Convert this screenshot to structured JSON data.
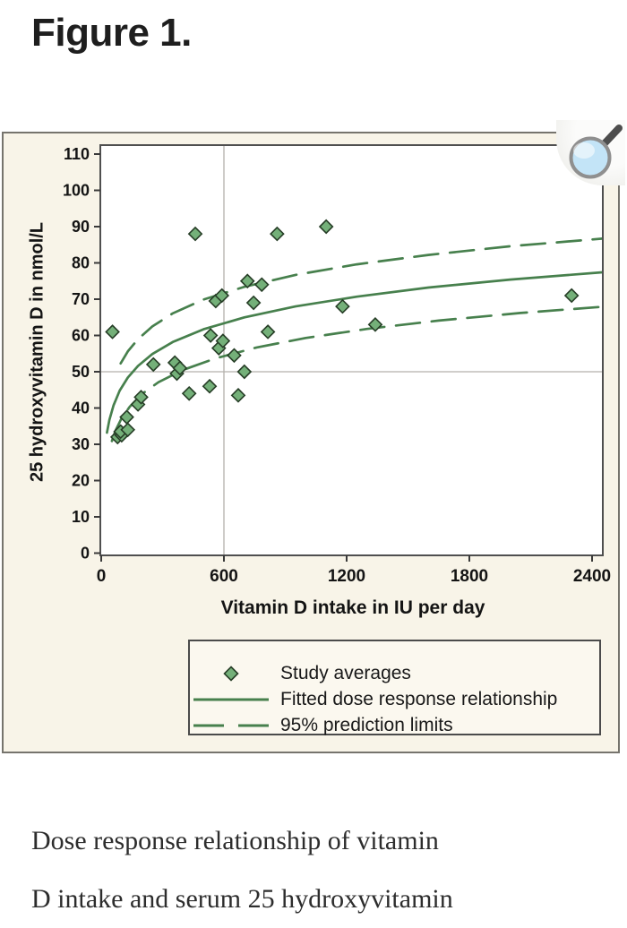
{
  "page": {
    "title": "Figure 1.",
    "caption_lines": [
      "Dose response relationship of vitamin",
      "D intake and serum 25 hydroxyvitamin"
    ]
  },
  "colors": {
    "panel_bg": "#f8f4e8",
    "panel_border": "#76746d",
    "plot_bg": "#ffffff",
    "frame": "#4f4f4f",
    "reference_line": "#b3b1ac",
    "tick": "#3a3a3a",
    "tick_text": "#141414",
    "curve_green": "#47804d",
    "marker_fill": "#74b079",
    "marker_stroke": "#263d26",
    "legend_border": "#4b4b4b",
    "legend_bg": "#fbf8ef",
    "lens_fill": "#c3e4f7",
    "lens_rim": "#8f8f8f",
    "lens_handle": "#4d4d4d"
  },
  "chart_data": {
    "type": "scatter",
    "title": "",
    "xlabel": "Vitamin D intake in IU per day",
    "ylabel": "25 hydroxyvitamin D in nmol/L",
    "xlim": [
      0,
      2453
    ],
    "ylim": [
      0,
      112.5
    ],
    "x_ticks": [
      0,
      600,
      1200,
      1800,
      2400
    ],
    "y_ticks": [
      0,
      10,
      20,
      30,
      40,
      50,
      60,
      70,
      80,
      90,
      100,
      110
    ],
    "reference_line_x": 600,
    "reference_line_y": 50,
    "grid": "off",
    "legend": {
      "position": "bottom",
      "entries": [
        {
          "marker": "diamond",
          "label": "Study averages"
        },
        {
          "marker": "solid-line",
          "label": "Fitted dose response relationship"
        },
        {
          "marker": "dashed-line",
          "label": "95% prediction limits"
        }
      ]
    },
    "series": [
      {
        "name": "Study averages",
        "type": "scatter",
        "marker": "diamond",
        "points": [
          [
            55,
            61
          ],
          [
            80,
            32
          ],
          [
            100,
            32.5
          ],
          [
            95,
            33.5
          ],
          [
            130,
            34
          ],
          [
            125,
            37.5
          ],
          [
            180,
            41
          ],
          [
            195,
            43
          ],
          [
            255,
            52
          ],
          [
            360,
            52.5
          ],
          [
            370,
            49.5
          ],
          [
            385,
            51
          ],
          [
            430,
            44
          ],
          [
            460,
            88
          ],
          [
            530,
            46
          ],
          [
            535,
            60
          ],
          [
            560,
            69.5
          ],
          [
            575,
            56.5
          ],
          [
            590,
            71
          ],
          [
            595,
            58.5
          ],
          [
            650,
            54.5
          ],
          [
            670,
            43.5
          ],
          [
            700,
            50
          ],
          [
            715,
            75
          ],
          [
            745,
            69
          ],
          [
            785,
            74
          ],
          [
            815,
            61
          ],
          [
            860,
            88
          ],
          [
            1100,
            90
          ],
          [
            1180,
            68
          ],
          [
            1340,
            63
          ],
          [
            2300,
            71
          ]
        ]
      },
      {
        "name": "Fitted dose response relationship",
        "type": "line",
        "style": "solid",
        "points": [
          [
            28,
            33.2
          ],
          [
            40,
            36.7
          ],
          [
            60,
            40.7
          ],
          [
            90,
            44.8
          ],
          [
            130,
            48.4
          ],
          [
            180,
            51.6
          ],
          [
            250,
            54.9
          ],
          [
            350,
            58.2
          ],
          [
            500,
            61.7
          ],
          [
            700,
            65.0
          ],
          [
            950,
            68.0
          ],
          [
            1250,
            70.7
          ],
          [
            1600,
            73.2
          ],
          [
            2000,
            75.4
          ],
          [
            2450,
            77.4
          ]
        ]
      },
      {
        "name": "95% prediction limit (upper)",
        "type": "line",
        "style": "dashed",
        "points": [
          [
            95,
            52.3
          ],
          [
            130,
            55.6
          ],
          [
            180,
            59.0
          ],
          [
            250,
            62.5
          ],
          [
            350,
            66.1
          ],
          [
            500,
            69.9
          ],
          [
            700,
            73.4
          ],
          [
            950,
            76.7
          ],
          [
            1250,
            79.6
          ],
          [
            1600,
            82.2
          ],
          [
            2000,
            84.6
          ],
          [
            2450,
            86.7
          ]
        ]
      },
      {
        "name": "95% prediction limit (lower)",
        "type": "line",
        "style": "dashed",
        "points": [
          [
            52,
            30.9
          ],
          [
            70,
            33.8
          ],
          [
            100,
            37.2
          ],
          [
            140,
            40.4
          ],
          [
            200,
            43.9
          ],
          [
            280,
            47.1
          ],
          [
            400,
            50.5
          ],
          [
            560,
            53.7
          ],
          [
            760,
            56.7
          ],
          [
            1000,
            59.3
          ],
          [
            1300,
            61.8
          ],
          [
            1650,
            64.1
          ],
          [
            2050,
            66.2
          ],
          [
            2450,
            67.9
          ]
        ]
      }
    ]
  }
}
